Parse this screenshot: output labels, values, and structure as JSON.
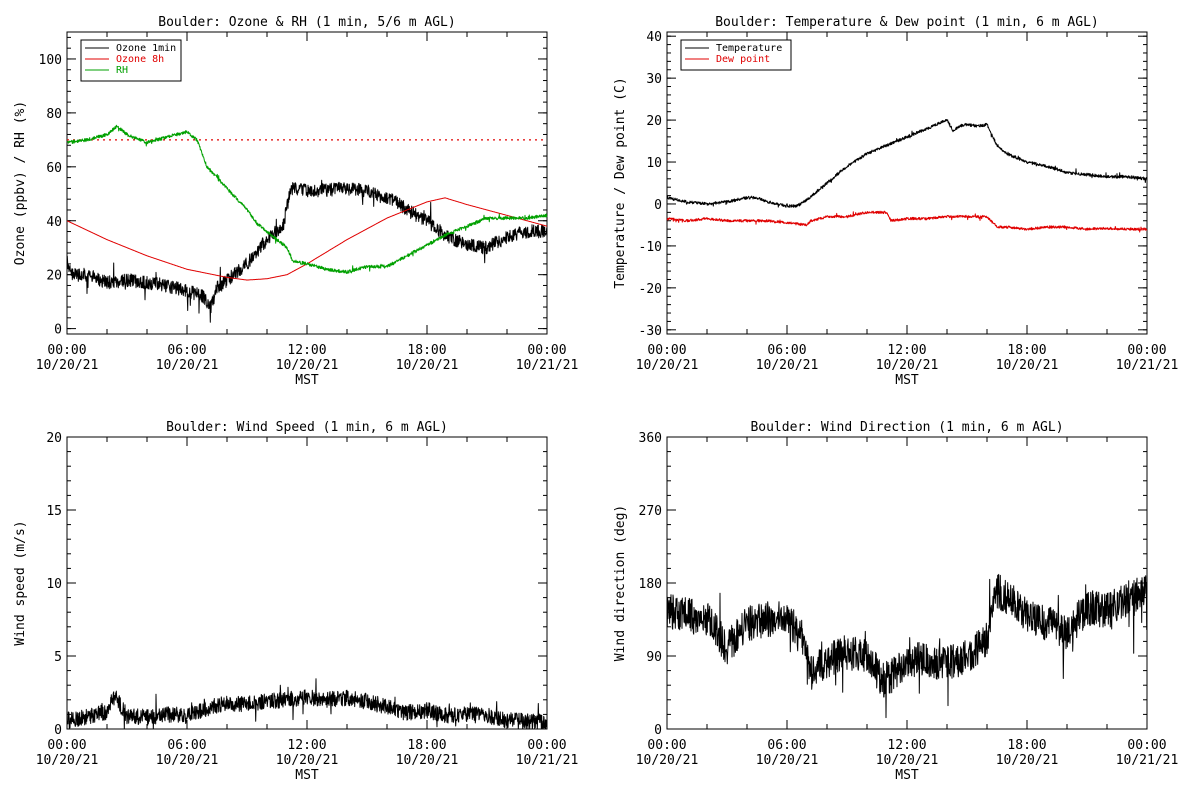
{
  "chart_data": [
    {
      "type": "line",
      "title": "Boulder: Ozone & RH (1 min, 5/6 m AGL)",
      "xlabel": "MST",
      "ylabel": "Ozone (ppbv) / RH (%)",
      "xlim": [
        0,
        24
      ],
      "ylim": [
        -2,
        110
      ],
      "yticks": [
        0,
        20,
        40,
        60,
        80,
        100
      ],
      "xtick_times": [
        "00:00",
        "06:00",
        "12:00",
        "18:00",
        "00:00"
      ],
      "xtick_dates": [
        "10/20/21",
        "10/20/21",
        "10/20/21",
        "10/20/21",
        "10/21/21"
      ],
      "legend": "top-left",
      "reference_line": {
        "y": 70,
        "color": "#e00000",
        "style": "dotted"
      },
      "series": [
        {
          "name": "Ozone 1min",
          "color": "#000000",
          "noise": 2.5,
          "x": [
            0,
            0.2,
            1,
            2,
            3,
            4,
            5,
            6,
            6.8,
            7.2,
            7.5,
            8,
            9,
            10,
            10.8,
            11.2,
            12,
            14,
            15,
            16.5,
            17,
            17.5,
            18,
            19,
            20,
            21,
            22,
            23,
            24
          ],
          "y": [
            25,
            20,
            20,
            17,
            18,
            17,
            16,
            14,
            12,
            8,
            15,
            18,
            24,
            33,
            38,
            52,
            51,
            52,
            51,
            47,
            44,
            42,
            40,
            34,
            31,
            30,
            34,
            36,
            36
          ]
        },
        {
          "name": "Ozone 8h",
          "color": "#e00000",
          "noise": 0,
          "x": [
            0,
            2,
            4,
            6,
            8,
            9,
            10,
            11,
            12,
            14,
            16,
            18,
            18.9,
            20,
            22,
            24
          ],
          "y": [
            40,
            33,
            27,
            22,
            19,
            18,
            18.5,
            20,
            24,
            33,
            41,
            47,
            48.5,
            46,
            42,
            38
          ]
        },
        {
          "name": "RH",
          "color": "#00a000",
          "noise": 0.6,
          "x": [
            0,
            1,
            2,
            2.5,
            3,
            4,
            5,
            6,
            6.5,
            7,
            8,
            9,
            9.5,
            10,
            10.5,
            11,
            11.3,
            12,
            13,
            14,
            15,
            16,
            17,
            18,
            19,
            20,
            21,
            22,
            23,
            24
          ],
          "y": [
            69,
            70,
            72,
            75,
            72,
            69,
            71,
            73,
            70,
            60,
            52,
            44,
            39,
            36,
            33,
            30,
            25,
            24,
            22,
            21,
            23,
            23,
            27,
            31,
            35,
            38,
            41,
            41,
            41,
            42
          ]
        }
      ]
    },
    {
      "type": "line",
      "title": "Boulder: Temperature & Dew point (1 min, 6 m AGL)",
      "xlabel": "MST",
      "ylabel": "Temperature / Dew point (C)",
      "xlim": [
        0,
        24
      ],
      "ylim": [
        -31,
        41
      ],
      "yticks": [
        -30,
        -20,
        -10,
        0,
        10,
        20,
        30,
        40
      ],
      "xtick_times": [
        "00:00",
        "06:00",
        "12:00",
        "18:00",
        "00:00"
      ],
      "xtick_dates": [
        "10/20/21",
        "10/20/21",
        "10/20/21",
        "10/20/21",
        "10/21/21"
      ],
      "legend": "top-left",
      "series": [
        {
          "name": "Temperature",
          "color": "#000000",
          "noise": 0.35,
          "x": [
            0,
            1,
            2,
            3,
            4,
            4.5,
            5,
            6,
            6.5,
            7,
            8,
            9,
            10,
            11,
            12,
            13,
            14,
            14.3,
            14.6,
            15,
            15.5,
            16,
            16.5,
            17,
            18,
            19,
            20,
            21,
            22,
            23,
            24
          ],
          "y": [
            1.5,
            0.5,
            0,
            0.5,
            1.5,
            1.5,
            0.5,
            -0.5,
            -0.5,
            1,
            5,
            9,
            12,
            14,
            16,
            18,
            20,
            17.5,
            18.5,
            19,
            18.5,
            19,
            14,
            12,
            10,
            9,
            7.5,
            7,
            6.5,
            6.5,
            6
          ]
        },
        {
          "name": "Dew point",
          "color": "#e00000",
          "noise": 0.3,
          "x": [
            0,
            1,
            2,
            3,
            4,
            5,
            6,
            7,
            7.2,
            8,
            9,
            10,
            11,
            11.2,
            12,
            13,
            14,
            15,
            16,
            16.5,
            17,
            18,
            19,
            20,
            21,
            22,
            23,
            24
          ],
          "y": [
            -3.5,
            -4,
            -3.5,
            -4,
            -4,
            -4,
            -4.5,
            -5,
            -4,
            -3,
            -3,
            -2,
            -2,
            -4,
            -3.5,
            -3.5,
            -3,
            -3,
            -3,
            -5.5,
            -5.5,
            -6,
            -5.5,
            -5.5,
            -6,
            -5.8,
            -6,
            -6
          ]
        }
      ]
    },
    {
      "type": "line",
      "title": "Boulder: Wind Speed (1 min, 6 m AGL)",
      "xlabel": "MST",
      "ylabel": "Wind speed (m/s)",
      "xlim": [
        0,
        24
      ],
      "ylim": [
        0,
        20
      ],
      "yticks": [
        0,
        5,
        10,
        15,
        20
      ],
      "xtick_times": [
        "00:00",
        "06:00",
        "12:00",
        "18:00",
        "00:00"
      ],
      "xtick_dates": [
        "10/20/21",
        "10/20/21",
        "10/20/21",
        "10/20/21",
        "10/21/21"
      ],
      "series": [
        {
          "name": "",
          "color": "#000000",
          "noise": 0.55,
          "x": [
            0,
            1,
            2,
            2.4,
            3,
            4,
            5,
            6,
            7,
            8,
            9,
            10,
            11,
            12,
            13,
            14,
            15,
            16,
            17,
            18,
            19,
            20,
            21,
            22,
            23,
            24
          ],
          "y": [
            0.6,
            0.8,
            1.2,
            2.2,
            0.9,
            0.8,
            1.0,
            0.9,
            1.4,
            1.8,
            1.7,
            1.9,
            2.0,
            2.2,
            2.0,
            2.1,
            1.9,
            1.5,
            1.1,
            1.3,
            0.9,
            1.0,
            0.9,
            0.6,
            0.5,
            0.5
          ]
        }
      ]
    },
    {
      "type": "line",
      "title": "Boulder: Wind Direction (1 min, 6 m AGL)",
      "xlabel": "MST",
      "ylabel": "Wind direction (deg)",
      "xlim": [
        0,
        24
      ],
      "ylim": [
        0,
        360
      ],
      "yticks": [
        0,
        90,
        180,
        270,
        360
      ],
      "xtick_times": [
        "00:00",
        "06:00",
        "12:00",
        "18:00",
        "00:00"
      ],
      "xtick_dates": [
        "10/20/21",
        "10/20/21",
        "10/20/21",
        "10/20/21",
        "10/21/21"
      ],
      "series": [
        {
          "name": "",
          "color": "#000000",
          "noise": 22,
          "x": [
            0,
            1,
            2,
            3,
            4,
            5,
            6,
            6.8,
            7.2,
            8,
            9,
            10,
            10.8,
            11.5,
            12,
            13,
            14,
            15,
            16,
            16.5,
            17,
            18,
            19,
            20,
            21,
            22,
            23,
            24
          ],
          "y": [
            145,
            140,
            135,
            100,
            130,
            135,
            140,
            110,
            70,
            85,
            95,
            90,
            60,
            70,
            85,
            85,
            80,
            90,
            110,
            170,
            165,
            140,
            130,
            120,
            150,
            145,
            160,
            170
          ]
        }
      ]
    }
  ]
}
